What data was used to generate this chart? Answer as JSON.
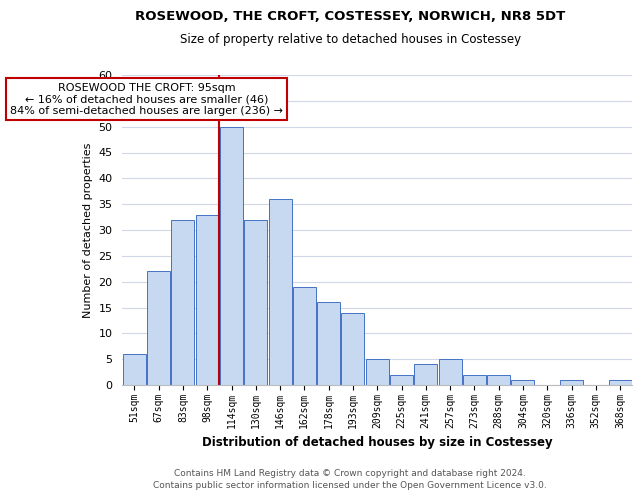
{
  "title": "ROSEWOOD, THE CROFT, COSTESSEY, NORWICH, NR8 5DT",
  "subtitle": "Size of property relative to detached houses in Costessey",
  "xlabel": "Distribution of detached houses by size in Costessey",
  "ylabel": "Number of detached properties",
  "bar_labels": [
    "51sqm",
    "67sqm",
    "83sqm",
    "98sqm",
    "114sqm",
    "130sqm",
    "146sqm",
    "162sqm",
    "178sqm",
    "193sqm",
    "209sqm",
    "225sqm",
    "241sqm",
    "257sqm",
    "273sqm",
    "288sqm",
    "304sqm",
    "320sqm",
    "336sqm",
    "352sqm",
    "368sqm"
  ],
  "bar_values": [
    6,
    22,
    32,
    33,
    50,
    32,
    36,
    19,
    16,
    14,
    5,
    2,
    4,
    5,
    2,
    2,
    1,
    0,
    1,
    0,
    1
  ],
  "bar_color": "#c6d9f0",
  "bar_edge_color": "#4472c4",
  "vline_x": 3.5,
  "vline_color": "#c00000",
  "annotation_title": "ROSEWOOD THE CROFT: 95sqm",
  "annotation_line1": "← 16% of detached houses are smaller (46)",
  "annotation_line2": "84% of semi-detached houses are larger (236) →",
  "annotation_box_color": "#c00000",
  "ylim": [
    0,
    60
  ],
  "yticks": [
    0,
    5,
    10,
    15,
    20,
    25,
    30,
    35,
    40,
    45,
    50,
    55,
    60
  ],
  "footer_line1": "Contains HM Land Registry data © Crown copyright and database right 2024.",
  "footer_line2": "Contains public sector information licensed under the Open Government Licence v3.0.",
  "background_color": "#ffffff",
  "grid_color": "#d0d8e8"
}
